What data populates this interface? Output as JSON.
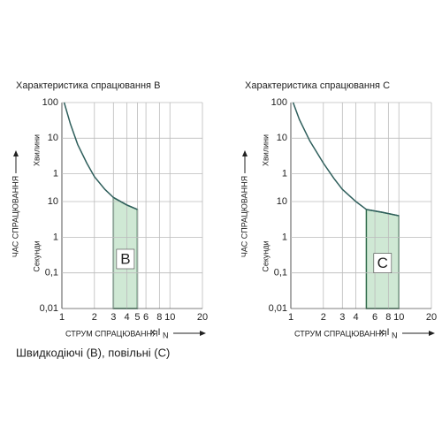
{
  "chart_data": [
    {
      "type": "line",
      "title": "Характеристика спрацювання B",
      "y_label": "ЧАС СПРАЦЮВАННЯ",
      "y_upper_label": "Хвилини",
      "y_lower_label": "Секунди",
      "x_label": "СТРУМ СПРАЦЮВАННЯ",
      "x_unit": "x I",
      "x_unit_sub": "N",
      "log_x": true,
      "log_y": true,
      "grid": true,
      "xlim": [
        1,
        20
      ],
      "xticks": [
        1,
        2,
        3,
        4,
        5,
        6,
        8,
        10,
        20
      ],
      "ylim": [
        0.01,
        6000
      ],
      "yticks": [
        {
          "value": 6000,
          "label": "100"
        },
        {
          "value": 600,
          "label": "10"
        },
        {
          "value": 60,
          "label": "1"
        },
        10,
        1,
        {
          "value": 0.1,
          "label": "0,1"
        },
        {
          "value": 0.01,
          "label": "0,01"
        }
      ],
      "series": [
        {
          "color": "#2f5f5c",
          "x": [
            1.05,
            1.2,
            1.4,
            1.7,
            2,
            2.5,
            3,
            4,
            5
          ],
          "values": [
            6000,
            1500,
            400,
            120,
            50,
            22,
            13,
            8,
            6
          ]
        }
      ],
      "zone": {
        "label": "B",
        "xlim": [
          3,
          5
        ],
        "color": "#cfe8d4"
      }
    },
    {
      "type": "line",
      "title": "Характеристика спрацювання C",
      "y_label": "ЧАС СПРАЦЮВАННЯ",
      "y_upper_label": "Хвилини",
      "y_lower_label": "Секунди",
      "x_label": "СТРУМ СПРАЦЮВАННЯ",
      "x_unit": "x I",
      "x_unit_sub": "N",
      "log_x": true,
      "log_y": true,
      "grid": true,
      "xlim": [
        1,
        20
      ],
      "xticks": [
        1,
        2,
        3,
        4,
        6,
        8,
        10,
        20
      ],
      "ylim": [
        0.01,
        6000
      ],
      "yticks": [
        {
          "value": 6000,
          "label": "100"
        },
        {
          "value": 600,
          "label": "10"
        },
        {
          "value": 60,
          "label": "1"
        },
        10,
        1,
        {
          "value": 0.1,
          "label": "0,1"
        },
        {
          "value": 0.01,
          "label": "0,01"
        }
      ],
      "series": [
        {
          "color": "#2f5f5c",
          "x": [
            1.05,
            1.2,
            1.5,
            2,
            2.5,
            3,
            4,
            5,
            7,
            10
          ],
          "values": [
            6000,
            2000,
            500,
            120,
            45,
            22,
            10,
            6,
            5,
            4
          ]
        }
      ],
      "zone": {
        "label": "C",
        "xlim": [
          5,
          10
        ],
        "color": "#cfe8d4"
      }
    }
  ],
  "caption": "Швидкодіючі (B), повільні (C)"
}
